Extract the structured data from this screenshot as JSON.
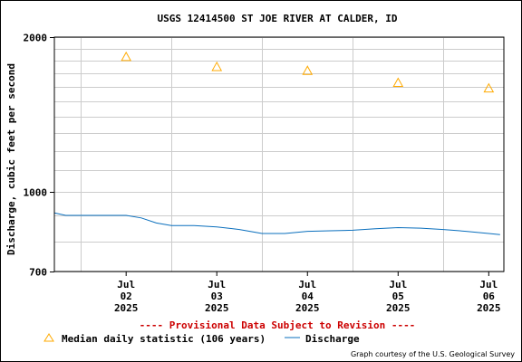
{
  "chart_data": {
    "type": "line",
    "title": "USGS 12414500 ST JOE RIVER AT CALDER, ID",
    "ylabel": "Discharge, cubic feet per second",
    "xlabel": "",
    "y_scale": "log",
    "ylim": [
      700,
      2000
    ],
    "y_ticks": [
      "2000",
      "1000",
      "700"
    ],
    "y_tick_values": [
      2000,
      1000,
      700
    ],
    "y_minor_gridlines": [
      800,
      900,
      1100,
      1200,
      1300,
      1400,
      1500,
      1600,
      1700,
      1800,
      1900
    ],
    "xlim": [
      "2025-07-01T17:00",
      "2025-07-06T16:00"
    ],
    "x_ticks": [
      {
        "date": "2025-07-02",
        "month": "Jul",
        "day": "02",
        "year": "2025"
      },
      {
        "date": "2025-07-03",
        "month": "Jul",
        "day": "03",
        "year": "2025"
      },
      {
        "date": "2025-07-04",
        "month": "Jul",
        "day": "04",
        "year": "2025"
      },
      {
        "date": "2025-07-05",
        "month": "Jul",
        "day": "05",
        "year": "2025"
      },
      {
        "date": "2025-07-06",
        "month": "Jul",
        "day": "06",
        "year": "2025"
      }
    ],
    "grid": true,
    "median_color": "#ffaa00",
    "discharge_color": "#0a6fbd",
    "series": [
      {
        "name": "Median daily statistic (106 years)",
        "marker": "triangle",
        "x": [
          "2025-07-02T12:00",
          "2025-07-03T12:00",
          "2025-07-04T12:00",
          "2025-07-05T12:00",
          "2025-07-06T12:00"
        ],
        "values": [
          1830,
          1750,
          1720,
          1630,
          1590
        ]
      },
      {
        "name": "Discharge",
        "marker": "line",
        "x": [
          "2025-07-01T17:00",
          "2025-07-01T20:00",
          "2025-07-02T00:00",
          "2025-07-02T06:00",
          "2025-07-02T12:00",
          "2025-07-02T16:00",
          "2025-07-02T20:00",
          "2025-07-03T00:00",
          "2025-07-03T06:00",
          "2025-07-03T12:00",
          "2025-07-03T18:00",
          "2025-07-04T00:00",
          "2025-07-04T06:00",
          "2025-07-04T12:00",
          "2025-07-04T18:00",
          "2025-07-05T00:00",
          "2025-07-05T06:00",
          "2025-07-05T12:00",
          "2025-07-05T18:00",
          "2025-07-06T00:00",
          "2025-07-06T06:00",
          "2025-07-06T12:00",
          "2025-07-06T15:00"
        ],
        "values": [
          910,
          900,
          900,
          900,
          900,
          890,
          870,
          860,
          860,
          855,
          845,
          830,
          830,
          838,
          840,
          842,
          848,
          852,
          850,
          845,
          838,
          830,
          826
        ]
      }
    ],
    "legend": [
      {
        "label": "Median daily statistic (106 years)",
        "marker": "triangle"
      },
      {
        "label": "Discharge",
        "marker": "line"
      }
    ],
    "annotation": "---- Provisional Data Subject to Revision ----",
    "annotation_color": "#cc0000",
    "credit": "Graph courtesy of the U.S. Geological Survey"
  }
}
